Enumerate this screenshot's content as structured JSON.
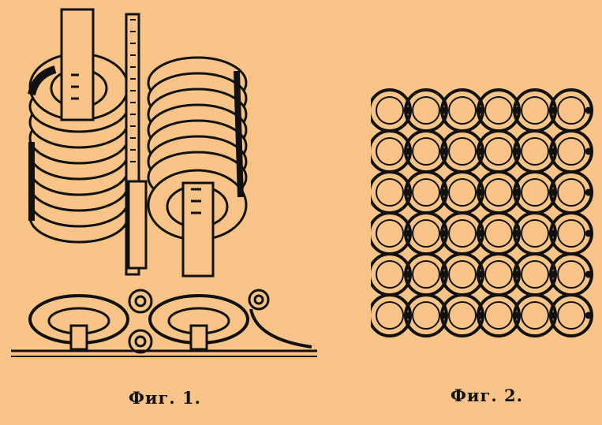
{
  "figures": [
    {
      "id": "fig1",
      "caption": "Фиг. 1.",
      "depicts": "coil-winding-and-ring-links"
    },
    {
      "id": "fig2",
      "caption": "Фиг. 2.",
      "depicts": "chain-mail-weave"
    }
  ],
  "colors": {
    "paper": "#f8c487",
    "ink": "#111111"
  }
}
